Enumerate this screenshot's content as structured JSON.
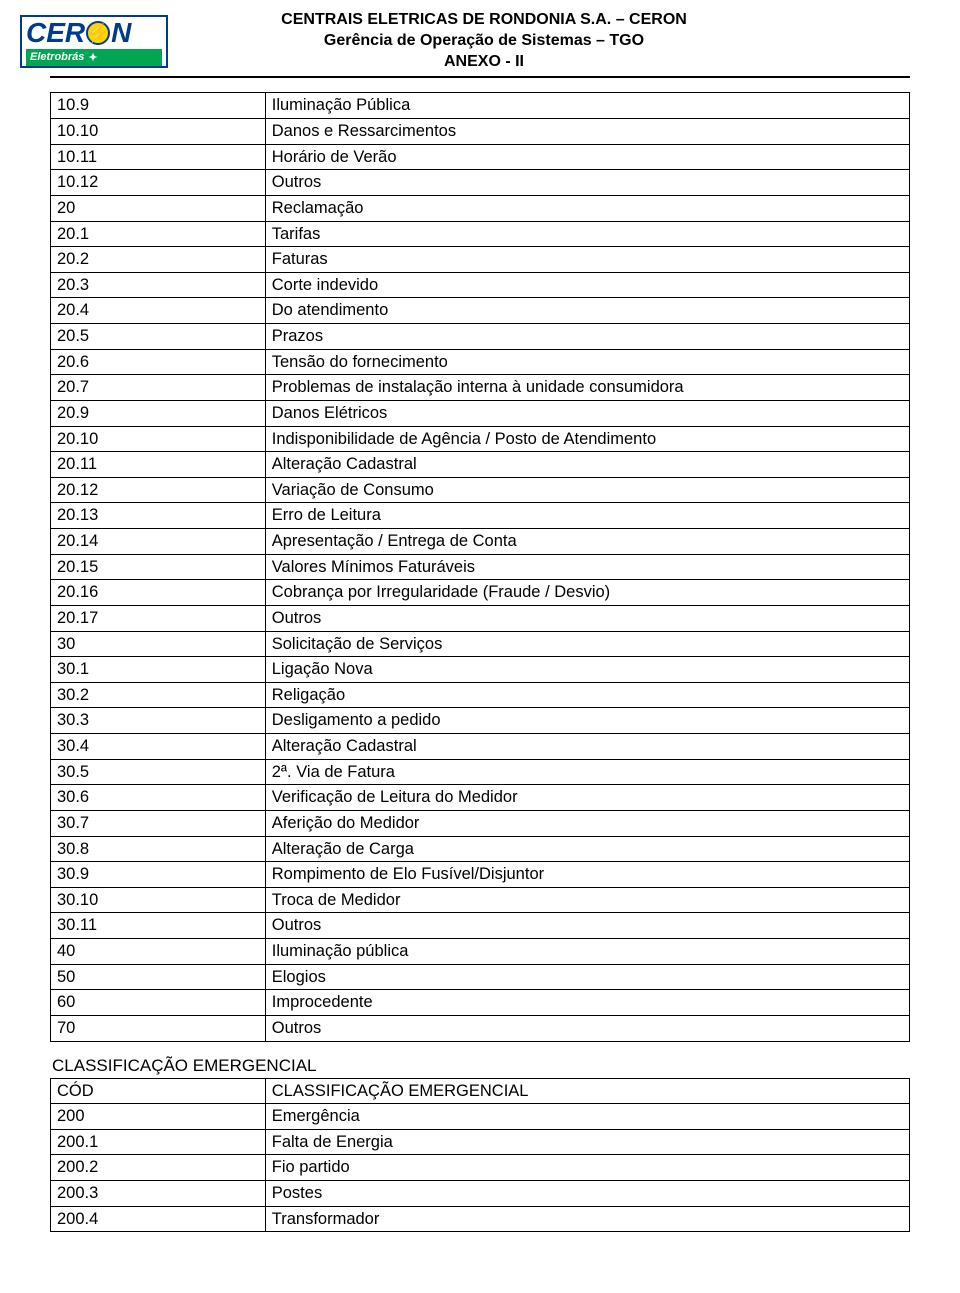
{
  "header": {
    "line1": "CENTRAIS ELETRICAS DE RONDONIA S.A. – CERON",
    "line2": "Gerência de Operação de Sistemas – TGO",
    "line3": "ANEXO - II"
  },
  "logo": {
    "word_left": "CER",
    "word_right": "N",
    "bolt": "⚡",
    "sub": "Eletrobrás",
    "sub_sym": "✦"
  },
  "table1": {
    "columns": [
      "code",
      "desc"
    ],
    "rows": [
      [
        "10.9",
        "Iluminação Pública"
      ],
      [
        "10.10",
        "Danos e Ressarcimentos"
      ],
      [
        "10.11",
        "Horário de Verão"
      ],
      [
        "10.12",
        "Outros"
      ],
      [
        "20",
        "Reclamação"
      ],
      [
        "20.1",
        "Tarifas"
      ],
      [
        "20.2",
        "Faturas"
      ],
      [
        "20.3",
        "Corte indevido"
      ],
      [
        "20.4",
        "Do atendimento"
      ],
      [
        "20.5",
        "Prazos"
      ],
      [
        "20.6",
        "Tensão do fornecimento"
      ],
      [
        "20.7",
        "Problemas de instalação interna à unidade consumidora"
      ],
      [
        "20.9",
        "Danos Elétricos"
      ],
      [
        "20.10",
        "Indisponibilidade de Agência / Posto de Atendimento"
      ],
      [
        "20.11",
        "Alteração Cadastral"
      ],
      [
        "20.12",
        "Variação de Consumo"
      ],
      [
        "20.13",
        "Erro de Leitura"
      ],
      [
        "20.14",
        "Apresentação / Entrega de Conta"
      ],
      [
        "20.15",
        "Valores Mínimos Faturáveis"
      ],
      [
        "20.16",
        "Cobrança por Irregularidade (Fraude / Desvio)"
      ],
      [
        "20.17",
        "Outros"
      ],
      [
        "30",
        "Solicitação de Serviços"
      ],
      [
        "30.1",
        "Ligação Nova"
      ],
      [
        "30.2",
        "Religação"
      ],
      [
        "30.3",
        "Desligamento a pedido"
      ],
      [
        "30.4",
        "Alteração Cadastral"
      ],
      [
        "30.5",
        "2ª. Via de Fatura"
      ],
      [
        "30.6",
        "Verificação de Leitura do Medidor"
      ],
      [
        "30.7",
        "Aferição do Medidor"
      ],
      [
        "30.8",
        "Alteração de Carga"
      ],
      [
        "30.9",
        "Rompimento de Elo Fusível/Disjuntor"
      ],
      [
        "30.10",
        "Troca de Medidor"
      ],
      [
        "30.11",
        "Outros"
      ],
      [
        "40",
        "Iluminação pública"
      ],
      [
        "50",
        "Elogios"
      ],
      [
        "60",
        "Improcedente"
      ],
      [
        "70",
        "Outros"
      ]
    ]
  },
  "section2": {
    "title": "CLASSIFICAÇÃO EMERGENCIAL"
  },
  "table2": {
    "rows": [
      [
        "CÓD",
        "CLASSIFICAÇÃO EMERGENCIAL"
      ],
      [
        "200",
        "Emergência"
      ],
      [
        "200.1",
        "Falta de Energia"
      ],
      [
        "200.2",
        "Fio partido"
      ],
      [
        "200.3",
        "Postes"
      ],
      [
        "200.4",
        "Transformador"
      ]
    ]
  }
}
